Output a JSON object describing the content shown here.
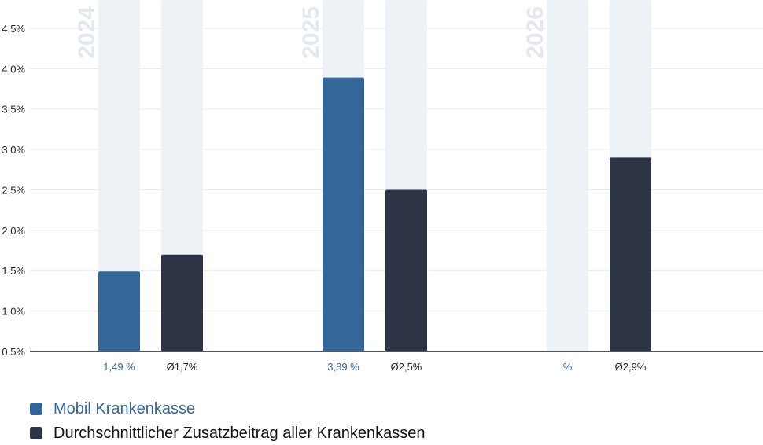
{
  "chart_data": {
    "type": "bar",
    "categories": [
      "2024",
      "2025",
      "2026"
    ],
    "y_ticks": [
      "0,5%",
      "1,0%",
      "1,5%",
      "2,0%",
      "2,5%",
      "3,0%",
      "3,5%",
      "4,0%",
      "4,5%"
    ],
    "y_tick_values": [
      0.5,
      1.0,
      1.5,
      2.0,
      2.5,
      3.0,
      3.5,
      4.0,
      4.5
    ],
    "ylim": [
      0.5,
      4.85
    ],
    "grid": true,
    "legend_position": "bottom-left",
    "series": [
      {
        "name": "Mobil Krankenkasse",
        "color": "#336699",
        "values": [
          1.49,
          3.89,
          null
        ],
        "labels": [
          "1,49 %",
          "3,89 %",
          "%"
        ]
      },
      {
        "name": "Durchschnittlicher Zusatzbeitrag aller Krankenkassen",
        "color": "#2d3446",
        "values": [
          1.7,
          2.5,
          2.9
        ],
        "labels": [
          "Ø1,7%",
          "Ø2,5%",
          "Ø2,9%"
        ]
      }
    ],
    "background_bar_color": "#edf2f7"
  },
  "legend": {
    "items": [
      {
        "label": "Mobil Krankenkasse",
        "color": "#336699"
      },
      {
        "label": "Durchschnittlicher Zusatzbeitrag aller Krankenkassen",
        "color": "#2d3446"
      }
    ]
  }
}
